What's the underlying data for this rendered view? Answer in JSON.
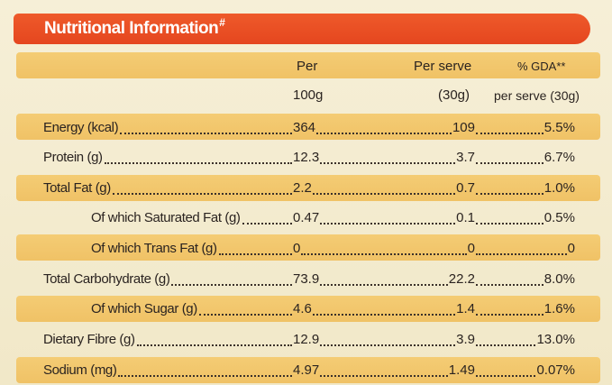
{
  "header": {
    "title": "Nutritional Information",
    "mark": "#"
  },
  "columns": {
    "per_100g_line1": "Per",
    "per_100g_line2": "100g",
    "per_serve_line1": "Per serve",
    "per_serve_line2": "(30g)",
    "gda_line1": "% GDA**",
    "gda_line2": "per serve (30g)"
  },
  "rows": [
    {
      "label": "Energy (kcal)",
      "per100": "364",
      "perServe": "109",
      "gda": "5.5%",
      "indent": false
    },
    {
      "label": "Protein (g)",
      "per100": "12.3",
      "perServe": "3.7",
      "gda": "6.7%",
      "indent": false
    },
    {
      "label": "Total Fat (g)",
      "per100": "2.2",
      "perServe": "0.7",
      "gda": "1.0%",
      "indent": false
    },
    {
      "label": "Of which Saturated Fat (g)",
      "per100": "0.47",
      "perServe": "0.1",
      "gda": "0.5%",
      "indent": true
    },
    {
      "label": "Of which Trans Fat (g)",
      "per100": "0",
      "perServe": "0",
      "gda": "0",
      "indent": true
    },
    {
      "label": "Total Carbohydrate (g)",
      "per100": "73.9",
      "perServe": "22.2",
      "gda": "8.0%",
      "indent": false
    },
    {
      "label": "Of which Sugar (g)",
      "per100": "4.6",
      "perServe": "1.4",
      "gda": "1.6%",
      "indent": true
    },
    {
      "label": "Dietary Fibre (g)",
      "per100": "12.9",
      "perServe": "3.9",
      "gda": "13.0%",
      "indent": false
    },
    {
      "label": "Sodium (mg)",
      "per100": "4.97",
      "perServe": "1.49",
      "gda": "0.07%",
      "indent": false
    }
  ],
  "colors": {
    "header": "#e5461f",
    "stripe": "#f2c66a",
    "background": "#f4ecd0"
  }
}
